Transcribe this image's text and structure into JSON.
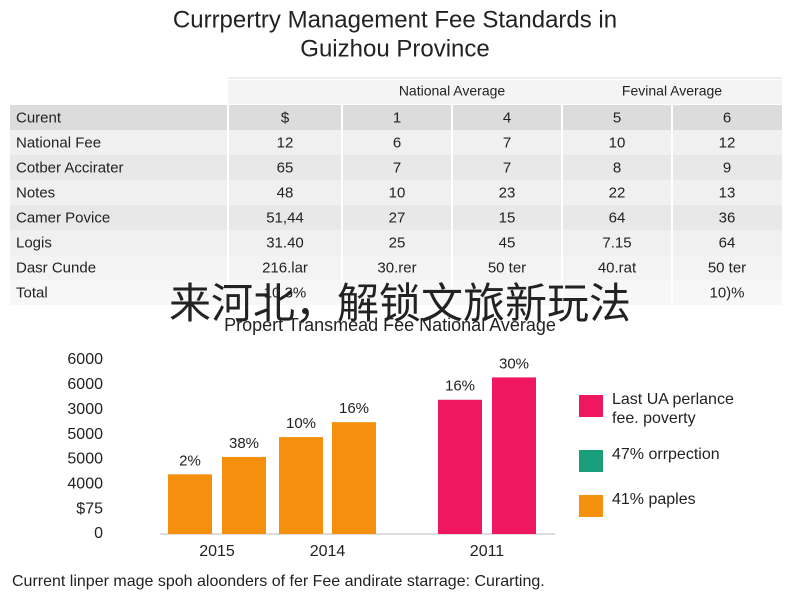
{
  "title_lines": [
    "Currpertry Management Fee Standards in",
    "Guizhou Province"
  ],
  "table": {
    "group_headers": [
      "National Average",
      "Fevinal Average"
    ],
    "rows": [
      [
        "Curent",
        "$",
        "1",
        "4",
        "5",
        "6"
      ],
      [
        "National Fee",
        "12",
        "6",
        "7",
        "10",
        "12"
      ],
      [
        "Cotber Accirater",
        "65",
        "7",
        "7",
        "8",
        "9"
      ],
      [
        "Notes",
        "48",
        "10",
        "23",
        "22",
        "13"
      ],
      [
        "Camer Povice",
        "51,44",
        "27",
        "15",
        "64",
        "36"
      ],
      [
        "Logis",
        "31.40",
        "25",
        "45",
        "7.15",
        "64"
      ],
      [
        "Dasr Cunde",
        "216.lar",
        "30.rer",
        "50 ter",
        "40.rat",
        "50 ter"
      ],
      [
        "Total",
        "10.3%",
        null,
        null,
        null,
        "10)%"
      ]
    ]
  },
  "overlay_text": "来河北，解锁文旅新玩法",
  "chart_data": {
    "type": "bar",
    "title": "Propert Transmead Fee National Average",
    "categories": [
      "2015",
      null,
      "2014",
      null,
      "2011",
      null
    ],
    "values": [
      2.4,
      3.1,
      3.9,
      4.5,
      5.4,
      6.3
    ],
    "bar_labels": [
      "2%",
      "38%",
      "10%",
      "16%",
      "16%",
      "30%"
    ],
    "colors": [
      "#f5900f",
      "#f5900f",
      "#f5900f",
      "#f5900f",
      "#ee1760",
      "#ee1760"
    ],
    "ylim": [
      0,
      7
    ],
    "yticks": [
      {
        "value": 0,
        "label": "0"
      },
      {
        "value": 1,
        "label": "$75"
      },
      {
        "value": 2,
        "label": "4000"
      },
      {
        "value": 3,
        "label": "5000"
      },
      {
        "value": 4,
        "label": "5000"
      },
      {
        "value": 5,
        "label": "3000"
      },
      {
        "value": 6,
        "label": "6000"
      },
      {
        "value": 7,
        "label": "6000"
      }
    ],
    "grid": false,
    "legend": [
      {
        "name": [
          "Last UA perlance",
          "fee. poverty"
        ],
        "color": "#ee1760"
      },
      {
        "name": [
          "47% orrpection"
        ],
        "color": "#1a9e7a"
      },
      {
        "name": [
          "41% paples"
        ],
        "color": "#f5900f"
      }
    ]
  },
  "caption": "Current linper mage spoh aloonders of fer Fee andirate starrage: Curarting."
}
